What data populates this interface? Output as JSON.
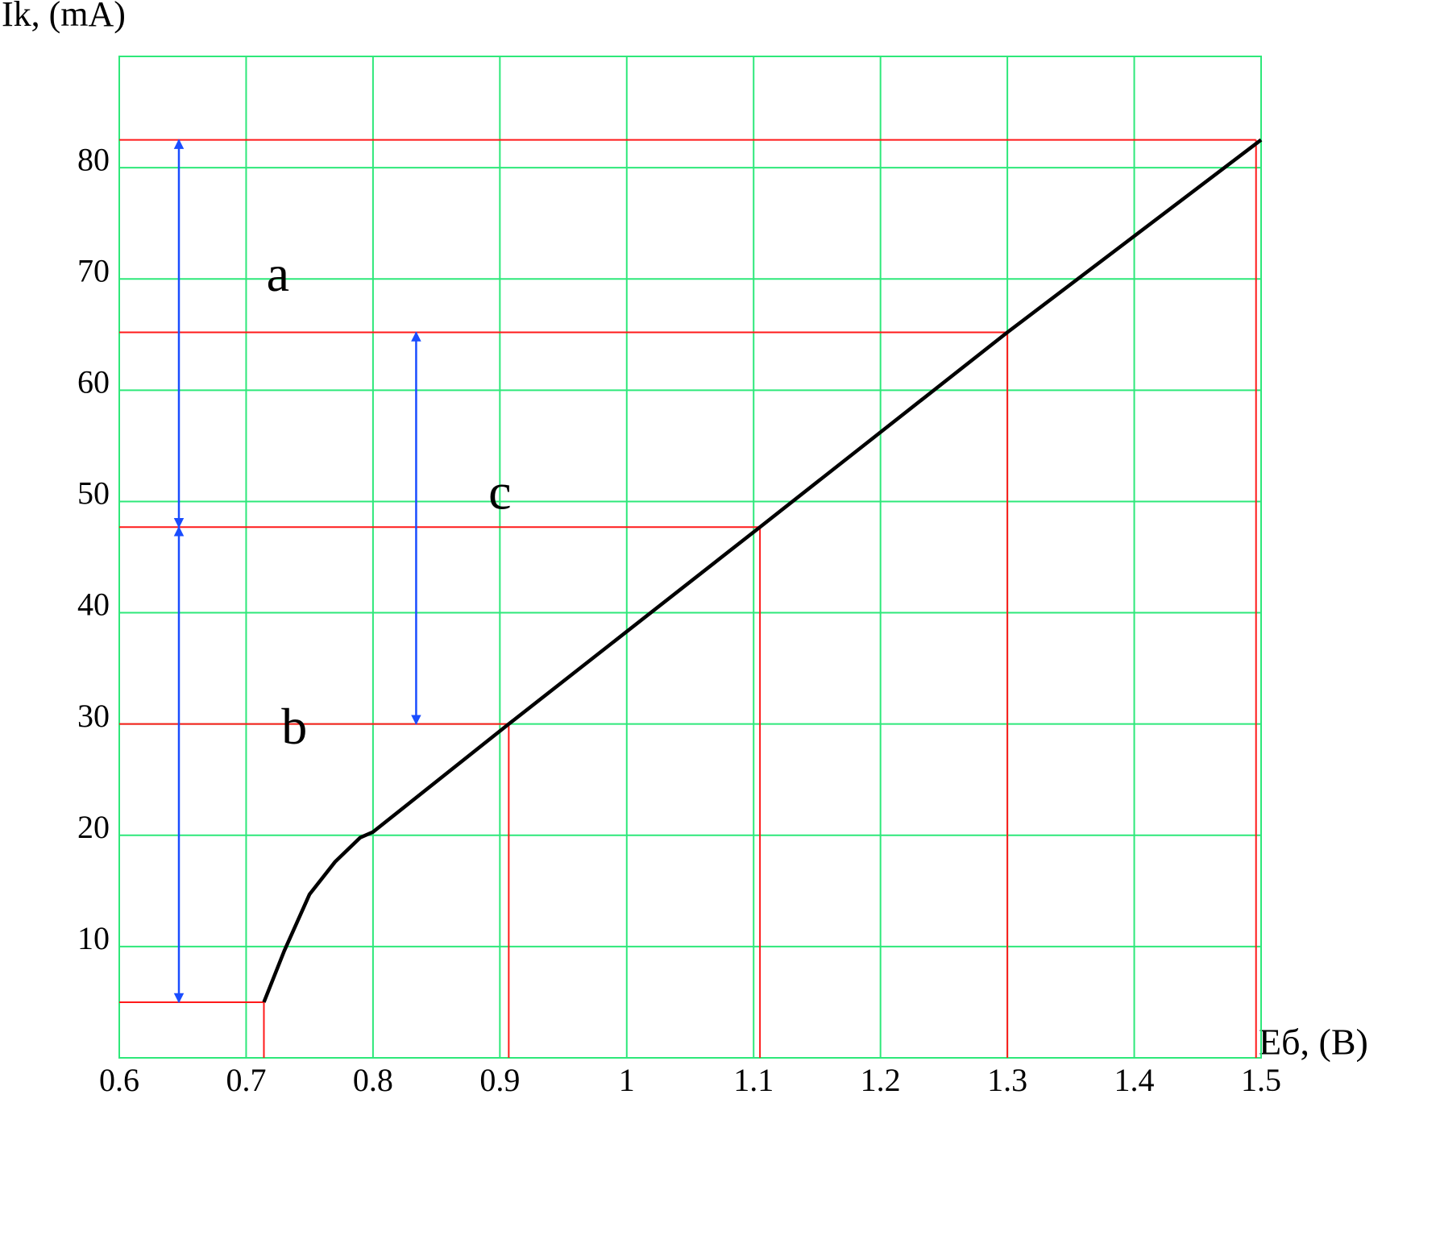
{
  "chart_data": {
    "type": "line",
    "x_label": "Еб, (В)",
    "y_label": "Ik, (mA)",
    "xlim": [
      0.6,
      1.5
    ],
    "ylim": [
      0,
      90
    ],
    "xticks": [
      0.6,
      0.7,
      0.8,
      0.9,
      1,
      1.1,
      1.2,
      1.3,
      1.4,
      1.5
    ],
    "yticks": [
      10,
      20,
      30,
      40,
      50,
      60,
      70,
      80
    ],
    "grid": true,
    "grid_color": "#2ee87a",
    "series": [
      {
        "color": "#000000",
        "x": [
          0.714,
          0.73,
          0.75,
          0.77,
          0.79,
          0.8,
          0.907,
          1.105,
          1.3,
          1.5
        ],
        "values": [
          5,
          9.6,
          14.7,
          17.6,
          19.8,
          20.3,
          30,
          47.7,
          65.2,
          82.5
        ]
      }
    ],
    "reference_points": {
      "color": "#ff1a1a",
      "x": [
        0.714,
        0.907,
        1.105,
        1.3,
        1.496
      ],
      "y": [
        5,
        30,
        47.7,
        65.2,
        82.5
      ]
    },
    "annotations": [
      {
        "text": "a",
        "arrow_x": 0.647,
        "from": 82.5,
        "to": 47.7,
        "label_x": 0.725,
        "label_y": 70
      },
      {
        "text": "b",
        "arrow_x": 0.647,
        "from": 47.7,
        "to": 5,
        "label_x": 0.738,
        "label_y": 29.3
      },
      {
        "text": "c",
        "arrow_x": 0.834,
        "from": 65.2,
        "to": 30,
        "label_x": 0.9,
        "label_y": 50.4
      }
    ],
    "arrow_color": "#1a4dff"
  }
}
